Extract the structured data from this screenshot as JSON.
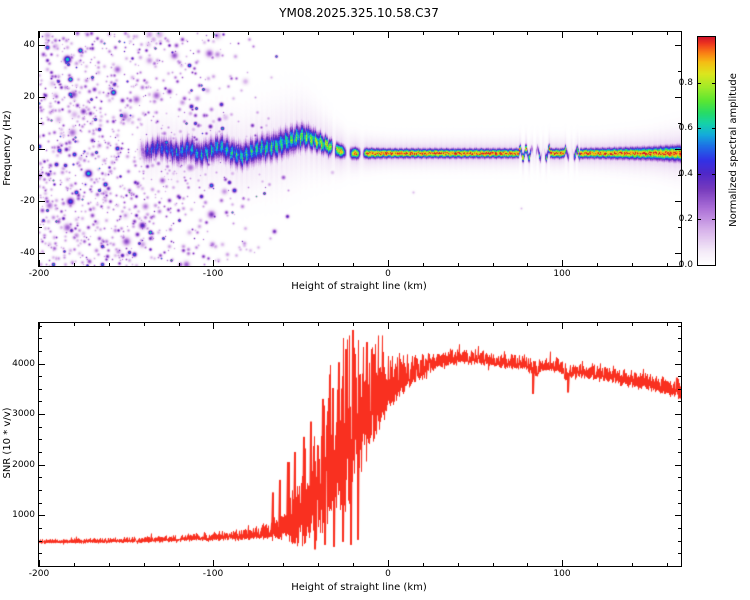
{
  "figure": {
    "background": "#ffffff",
    "axis_color": "#000000"
  },
  "chart_data": [
    {
      "type": "heatmap",
      "title": "YM08.2025.325.10.58.C37",
      "xlabel": "Height of straight line (km)",
      "ylabel": "Frequency (Hz)",
      "xlim": [
        -200,
        168
      ],
      "ylim": [
        -45,
        45
      ],
      "x_ticks": [
        -200,
        -100,
        0,
        100
      ],
      "y_ticks": [
        -40,
        -20,
        0,
        20,
        40
      ],
      "colorbar_label": "Normalized spectral amplitude",
      "colorbar_ticks": [
        0.0,
        0.2,
        0.4,
        0.6,
        0.8
      ],
      "colorbar_range": [
        0,
        1
      ],
      "colormap_stops": [
        [
          0.0,
          "#ffffff"
        ],
        [
          0.06,
          "#f4eaf8"
        ],
        [
          0.15,
          "#d8b4eb"
        ],
        [
          0.25,
          "#aa6ed7"
        ],
        [
          0.33,
          "#783cbe"
        ],
        [
          0.4,
          "#5028c8"
        ],
        [
          0.46,
          "#3232e6"
        ],
        [
          0.52,
          "#1e6ee6"
        ],
        [
          0.57,
          "#14aadc"
        ],
        [
          0.62,
          "#14d2aa"
        ],
        [
          0.67,
          "#28dc64"
        ],
        [
          0.72,
          "#5ae632"
        ],
        [
          0.78,
          "#a0eb28"
        ],
        [
          0.84,
          "#dce61e"
        ],
        [
          0.89,
          "#f5be14"
        ],
        [
          0.93,
          "#fa8214"
        ],
        [
          0.97,
          "#f03c1e"
        ],
        [
          1.0,
          "#d21428"
        ]
      ],
      "band_center": [
        [
          -144,
          0
        ],
        [
          -138,
          -1
        ],
        [
          -132,
          1
        ],
        [
          -126,
          0
        ],
        [
          -120,
          -1.5
        ],
        [
          -114,
          0.5
        ],
        [
          -108,
          -2
        ],
        [
          -102,
          -0.5
        ],
        [
          -96,
          1
        ],
        [
          -90,
          -1
        ],
        [
          -84,
          -2.5
        ],
        [
          -78,
          -1
        ],
        [
          -72,
          0.5
        ],
        [
          -66,
          1
        ],
        [
          -60,
          2.5
        ],
        [
          -55,
          3.5
        ],
        [
          -50,
          5
        ],
        [
          -45,
          4.5
        ],
        [
          -40,
          3
        ],
        [
          -35,
          1.5
        ],
        [
          -30,
          0
        ],
        [
          -25,
          -1
        ],
        [
          -20,
          -1.5
        ],
        [
          -10,
          -1.5
        ],
        [
          0,
          -1.5
        ],
        [
          60,
          -1.5
        ],
        [
          120,
          -1.5
        ],
        [
          168,
          -1.5
        ]
      ],
      "band_width": [
        [
          -144,
          2.4
        ],
        [
          -120,
          2.8
        ],
        [
          -100,
          2.9
        ],
        [
          -80,
          3.0
        ],
        [
          -60,
          3.2
        ],
        [
          -50,
          3.0
        ],
        [
          -40,
          2.4
        ],
        [
          -30,
          1.8
        ],
        [
          -20,
          1.4
        ],
        [
          -10,
          1.2
        ],
        [
          0,
          1.1
        ],
        [
          80,
          1.1
        ],
        [
          120,
          1.2
        ],
        [
          150,
          1.5
        ],
        [
          168,
          1.9
        ]
      ],
      "band_amp": [
        [
          -144,
          0.5
        ],
        [
          -130,
          0.55
        ],
        [
          -115,
          0.62
        ],
        [
          -100,
          0.66
        ],
        [
          -85,
          0.7
        ],
        [
          -70,
          0.73
        ],
        [
          -60,
          0.76
        ],
        [
          -52,
          0.8
        ],
        [
          -45,
          0.85
        ],
        [
          -38,
          0.9
        ],
        [
          -30,
          0.96
        ],
        [
          -24,
          1.0
        ],
        [
          168,
          1.0
        ]
      ],
      "noise_density": [
        [
          -200,
          9
        ],
        [
          -170,
          8
        ],
        [
          -150,
          7
        ],
        [
          -130,
          5.5
        ],
        [
          -115,
          4.5
        ],
        [
          -100,
          3.5
        ],
        [
          -88,
          2.2
        ],
        [
          -78,
          1.2
        ],
        [
          -70,
          0.6
        ],
        [
          -62,
          0.3
        ],
        [
          -55,
          0.12
        ],
        [
          -45,
          0.05
        ],
        [
          -35,
          0.02
        ],
        [
          0,
          0.008
        ],
        [
          168,
          0.006
        ]
      ],
      "gaps": [
        [
          -31,
          0.8
        ],
        [
          -23,
          1.4
        ],
        [
          -15,
          1.1
        ],
        [
          84,
          1.6
        ],
        [
          89,
          1.2
        ],
        [
          105,
          1.6
        ]
      ],
      "disturbances": [
        {
          "x0": 75,
          "x1": 93,
          "wiggle": 2.0
        },
        {
          "x0": 101,
          "x1": 110,
          "wiggle": 1.6
        }
      ]
    },
    {
      "type": "line",
      "xlabel": "Height of straight line (km)",
      "ylabel": "SNR (10 * v/v)",
      "xlim": [
        -200,
        168
      ],
      "ylim": [
        0,
        4800
      ],
      "x_ticks": [
        -200,
        -100,
        0,
        100
      ],
      "y_ticks": [
        1000,
        2000,
        3000,
        4000
      ],
      "color": "#f93020",
      "profile": [
        [
          -200,
          470,
          45
        ],
        [
          -180,
          478,
          48
        ],
        [
          -160,
          488,
          52
        ],
        [
          -140,
          502,
          58
        ],
        [
          -120,
          522,
          65
        ],
        [
          -105,
          550,
          80
        ],
        [
          -95,
          565,
          90
        ],
        [
          -85,
          582,
          105
        ],
        [
          -78,
          598,
          125
        ],
        [
          -72,
          618,
          155
        ],
        [
          -66,
          655,
          215
        ],
        [
          -60,
          715,
          300
        ],
        [
          -55,
          800,
          600
        ],
        [
          -50,
          950,
          800
        ],
        [
          -46,
          1100,
          1000
        ],
        [
          -42,
          1250,
          1100
        ],
        [
          -38,
          1450,
          1250
        ],
        [
          -34,
          1650,
          1400
        ],
        [
          -30,
          1900,
          1550
        ],
        [
          -26,
          2150,
          1700
        ],
        [
          -22,
          2400,
          1800
        ],
        [
          -19,
          2550,
          1700
        ],
        [
          -16,
          2700,
          1550
        ],
        [
          -13,
          2850,
          1350
        ],
        [
          -10,
          3000,
          1150
        ],
        [
          -7,
          3100,
          980
        ],
        [
          -4,
          3200,
          820
        ],
        [
          0,
          3350,
          660
        ],
        [
          4,
          3500,
          520
        ],
        [
          8,
          3600,
          410
        ],
        [
          12,
          3700,
          330
        ],
        [
          16,
          3800,
          265
        ],
        [
          20,
          3880,
          215
        ],
        [
          25,
          3950,
          185
        ],
        [
          30,
          4020,
          165
        ],
        [
          35,
          4060,
          155
        ],
        [
          40,
          4080,
          150
        ],
        [
          45,
          4080,
          150
        ],
        [
          50,
          4070,
          145
        ],
        [
          55,
          4050,
          142
        ],
        [
          60,
          4020,
          140
        ],
        [
          65,
          4000,
          140
        ],
        [
          70,
          3990,
          142
        ],
        [
          75,
          3970,
          145
        ],
        [
          80,
          3950,
          150
        ],
        [
          85,
          3820,
          160
        ],
        [
          88,
          3920,
          150
        ],
        [
          92,
          3930,
          146
        ],
        [
          96,
          3910,
          146
        ],
        [
          100,
          3880,
          150
        ],
        [
          103,
          3720,
          160
        ],
        [
          106,
          3850,
          155
        ],
        [
          110,
          3820,
          158
        ],
        [
          115,
          3790,
          160
        ],
        [
          120,
          3760,
          163
        ],
        [
          125,
          3730,
          165
        ],
        [
          130,
          3700,
          165
        ],
        [
          135,
          3670,
          166
        ],
        [
          140,
          3640,
          168
        ],
        [
          145,
          3610,
          170
        ],
        [
          150,
          3580,
          170
        ],
        [
          155,
          3540,
          172
        ],
        [
          160,
          3500,
          175
        ],
        [
          164,
          3460,
          178
        ],
        [
          168,
          3420,
          180
        ]
      ],
      "spikes": [
        [
          -20,
          4660
        ],
        [
          -24,
          4280
        ],
        [
          -28,
          4020
        ],
        [
          -12,
          4420
        ],
        [
          -8,
          4180
        ],
        [
          -33,
          3780
        ],
        [
          -37,
          3300
        ],
        [
          -44,
          2850
        ],
        [
          -48,
          2550
        ],
        [
          -53,
          2250
        ],
        [
          -57,
          2050
        ],
        [
          -62,
          1700
        ],
        [
          -66,
          1450
        ]
      ],
      "dips": [
        [
          -17,
          520
        ],
        [
          -21,
          420
        ],
        [
          -26,
          480
        ],
        [
          -31,
          380
        ],
        [
          -36,
          420
        ],
        [
          -42,
          330
        ],
        [
          83,
          3400
        ],
        [
          103,
          3430
        ]
      ]
    }
  ]
}
